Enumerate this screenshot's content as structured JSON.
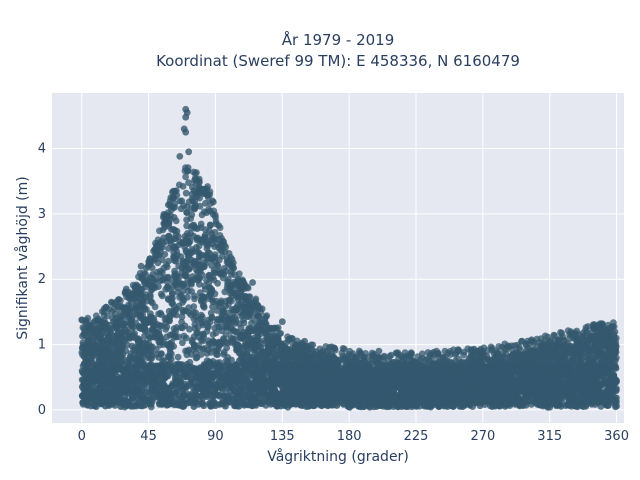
{
  "chart_data": {
    "type": "scatter",
    "title_lines": [
      "År 1979 - 2019",
      "Koordinat (Sweref 99 TM): E 458336, N 6160479"
    ],
    "xlabel": "Vågriktning (grader)",
    "ylabel": "Signifikant våghöjd (m)",
    "xlim": [
      -20,
      365
    ],
    "ylim": [
      -0.2,
      4.85
    ],
    "xticks": [
      0,
      45,
      90,
      135,
      180,
      225,
      270,
      315,
      360
    ],
    "yticks": [
      0,
      1,
      2,
      3,
      4
    ],
    "grid": true,
    "marker_color": "#34586e",
    "background_color": "#e5e8f0",
    "envelope": {
      "x": [
        0,
        10,
        20,
        30,
        40,
        50,
        55,
        60,
        65,
        70,
        75,
        80,
        85,
        90,
        95,
        100,
        110,
        120,
        130,
        140,
        150,
        165,
        180,
        200,
        225,
        250,
        270,
        290,
        310,
        330,
        345,
        360
      ],
      "ymax": [
        1.25,
        1.3,
        1.45,
        1.65,
        1.95,
        2.4,
        2.8,
        3.1,
        3.45,
        3.55,
        3.5,
        3.4,
        3.25,
        2.9,
        2.5,
        2.2,
        1.75,
        1.45,
        1.15,
        0.95,
        0.85,
        0.8,
        0.75,
        0.7,
        0.7,
        0.75,
        0.78,
        0.85,
        0.95,
        1.05,
        1.15,
        1.2
      ]
    },
    "outliers": [
      {
        "x": 70,
        "y": 4.6
      },
      {
        "x": 71,
        "y": 4.55
      },
      {
        "x": 70,
        "y": 4.48
      },
      {
        "x": 69,
        "y": 4.3
      },
      {
        "x": 70,
        "y": 4.25
      },
      {
        "x": 72,
        "y": 3.95
      },
      {
        "x": 66,
        "y": 3.88
      },
      {
        "x": 60,
        "y": 3.25
      },
      {
        "x": 55,
        "y": 2.95
      },
      {
        "x": 40,
        "y": 2.2
      },
      {
        "x": 102,
        "y": 2.25
      },
      {
        "x": 115,
        "y": 1.95
      },
      {
        "x": 120,
        "y": 1.55
      },
      {
        "x": 135,
        "y": 1.35
      },
      {
        "x": 150,
        "y": 1.05
      },
      {
        "x": 170,
        "y": 0.95
      },
      {
        "x": 200,
        "y": 0.9
      },
      {
        "x": 240,
        "y": 0.85
      },
      {
        "x": 270,
        "y": 0.82
      },
      {
        "x": 287,
        "y": 0.98
      },
      {
        "x": 310,
        "y": 0.95
      },
      {
        "x": 335,
        "y": 1.15
      },
      {
        "x": 345,
        "y": 1.25
      },
      {
        "x": 348,
        "y": 1.3
      },
      {
        "x": 352,
        "y": 1.22
      },
      {
        "x": 0,
        "y": 1.38
      },
      {
        "x": 3,
        "y": 1.37
      },
      {
        "x": 20,
        "y": 1.65
      },
      {
        "x": 30,
        "y": 1.85
      }
    ]
  }
}
